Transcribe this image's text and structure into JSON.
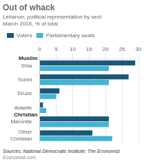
{
  "chart_data": {
    "type": "bar",
    "orientation": "horizontal",
    "title": "Out of whack",
    "subtitle": [
      "Lebanon, political representation by sect",
      "March 2016, % of total"
    ],
    "source": "Sources: National Democratic Institute; The Economist",
    "watermark": "Economist.com",
    "categories": [
      "Shia",
      "Sunni",
      "Druze",
      "Alawite",
      "Maronite",
      "Other\nChristian"
    ],
    "series": [
      {
        "name": "Voters",
        "color": "#1a5976",
        "values": [
          29,
          27,
          6,
          1,
          21,
          16
        ]
      },
      {
        "name": "Parliamentary seats",
        "color": "#42b4d4",
        "values": [
          21,
          21,
          5,
          2,
          21,
          22
        ]
      }
    ],
    "groups": [
      {
        "name": "Muslim",
        "categories": [
          "Shia",
          "Sunni",
          "Druze",
          "Alawite"
        ]
      },
      {
        "name": "Christian",
        "categories": [
          "Maronite",
          "Other\nChristian"
        ]
      }
    ],
    "xlim": [
      0,
      30
    ],
    "xticks": [
      0,
      5,
      10,
      15,
      20,
      25,
      30
    ],
    "grid": true,
    "legend": "upper left"
  }
}
